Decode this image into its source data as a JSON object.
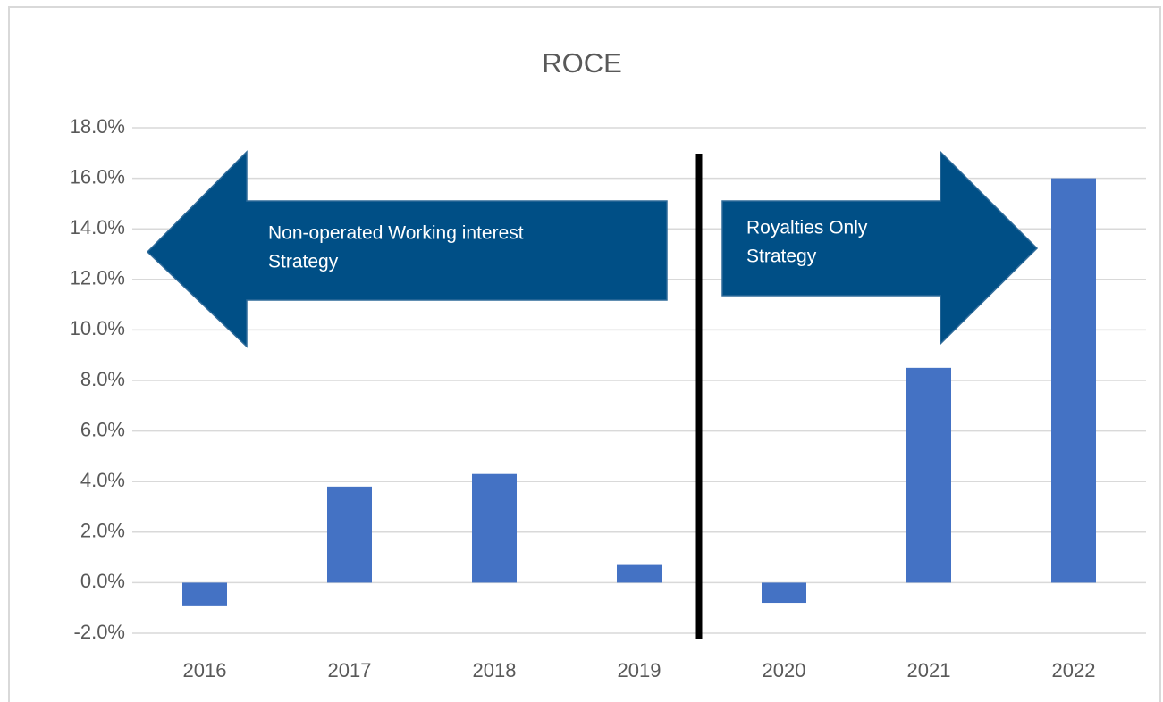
{
  "chart_data": {
    "type": "bar",
    "title": "ROCE",
    "categories": [
      "2016",
      "2017",
      "2018",
      "2019",
      "2020",
      "2021",
      "2022"
    ],
    "values": [
      -0.9,
      3.8,
      4.3,
      0.7,
      -0.8,
      8.5,
      16.0
    ],
    "color": "#4472c4",
    "ylim": [
      -2,
      18
    ],
    "yticks": [
      {
        "value": -2,
        "label": "-2.0%"
      },
      {
        "value": 0,
        "label": "0.0%"
      },
      {
        "value": 2,
        "label": "2.0%"
      },
      {
        "value": 4,
        "label": "4.0%"
      },
      {
        "value": 6,
        "label": "6.0%"
      },
      {
        "value": 8,
        "label": "8.0%"
      },
      {
        "value": 10,
        "label": "10.0%"
      },
      {
        "value": 12,
        "label": "12.0%"
      },
      {
        "value": 14,
        "label": "14.0%"
      },
      {
        "value": 16,
        "label": "16.0%"
      },
      {
        "value": 18,
        "label": "18.0%"
      }
    ],
    "grid": true,
    "annotations": [
      {
        "lines": [
          "Non-operated Working interest",
          "Strategy"
        ],
        "direction": "left",
        "color": "#004f86"
      },
      {
        "lines": [
          "Royalties Only",
          "Strategy"
        ],
        "direction": "right",
        "color": "#004f86"
      }
    ]
  }
}
